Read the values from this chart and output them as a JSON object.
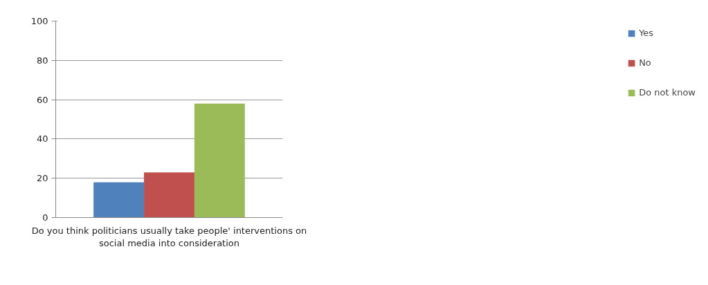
{
  "chart_data": {
    "type": "bar",
    "categories": [
      "Do you think politicians usually take people' interventions on social media into consideration"
    ],
    "series": [
      {
        "name": "Yes",
        "color": "#4f81bd",
        "values": [
          18
        ]
      },
      {
        "name": "No",
        "color": "#c0504d",
        "values": [
          23
        ]
      },
      {
        "name": "Do not know",
        "color": "#9bbb59",
        "values": [
          58
        ]
      }
    ],
    "ylim": [
      0,
      100
    ],
    "yticks": [
      0,
      20,
      40,
      60,
      80,
      100
    ],
    "grid": "y",
    "legend": "right"
  }
}
